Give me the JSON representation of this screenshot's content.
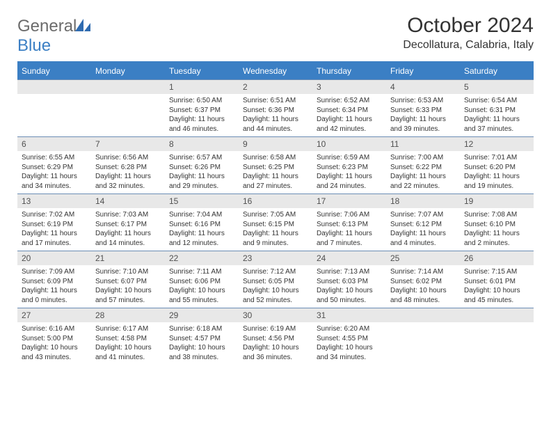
{
  "logo": {
    "word1": "General",
    "word2": "Blue"
  },
  "title": "October 2024",
  "location": "Decollatura, Calabria, Italy",
  "colors": {
    "header_bg": "#3b7fc4",
    "header_text": "#ffffff",
    "daynum_bg": "#e8e8e8",
    "daynum_text": "#505050",
    "body_text": "#333333",
    "rule": "#6b8db5",
    "logo_gray": "#6b6b6b",
    "logo_blue": "#3b7fc4"
  },
  "weekdays": [
    "Sunday",
    "Monday",
    "Tuesday",
    "Wednesday",
    "Thursday",
    "Friday",
    "Saturday"
  ],
  "grid": [
    [
      {
        "n": "",
        "lines": []
      },
      {
        "n": "",
        "lines": []
      },
      {
        "n": "1",
        "lines": [
          "Sunrise: 6:50 AM",
          "Sunset: 6:37 PM",
          "Daylight: 11 hours and 46 minutes."
        ]
      },
      {
        "n": "2",
        "lines": [
          "Sunrise: 6:51 AM",
          "Sunset: 6:36 PM",
          "Daylight: 11 hours and 44 minutes."
        ]
      },
      {
        "n": "3",
        "lines": [
          "Sunrise: 6:52 AM",
          "Sunset: 6:34 PM",
          "Daylight: 11 hours and 42 minutes."
        ]
      },
      {
        "n": "4",
        "lines": [
          "Sunrise: 6:53 AM",
          "Sunset: 6:33 PM",
          "Daylight: 11 hours and 39 minutes."
        ]
      },
      {
        "n": "5",
        "lines": [
          "Sunrise: 6:54 AM",
          "Sunset: 6:31 PM",
          "Daylight: 11 hours and 37 minutes."
        ]
      }
    ],
    [
      {
        "n": "6",
        "lines": [
          "Sunrise: 6:55 AM",
          "Sunset: 6:29 PM",
          "Daylight: 11 hours and 34 minutes."
        ]
      },
      {
        "n": "7",
        "lines": [
          "Sunrise: 6:56 AM",
          "Sunset: 6:28 PM",
          "Daylight: 11 hours and 32 minutes."
        ]
      },
      {
        "n": "8",
        "lines": [
          "Sunrise: 6:57 AM",
          "Sunset: 6:26 PM",
          "Daylight: 11 hours and 29 minutes."
        ]
      },
      {
        "n": "9",
        "lines": [
          "Sunrise: 6:58 AM",
          "Sunset: 6:25 PM",
          "Daylight: 11 hours and 27 minutes."
        ]
      },
      {
        "n": "10",
        "lines": [
          "Sunrise: 6:59 AM",
          "Sunset: 6:23 PM",
          "Daylight: 11 hours and 24 minutes."
        ]
      },
      {
        "n": "11",
        "lines": [
          "Sunrise: 7:00 AM",
          "Sunset: 6:22 PM",
          "Daylight: 11 hours and 22 minutes."
        ]
      },
      {
        "n": "12",
        "lines": [
          "Sunrise: 7:01 AM",
          "Sunset: 6:20 PM",
          "Daylight: 11 hours and 19 minutes."
        ]
      }
    ],
    [
      {
        "n": "13",
        "lines": [
          "Sunrise: 7:02 AM",
          "Sunset: 6:19 PM",
          "Daylight: 11 hours and 17 minutes."
        ]
      },
      {
        "n": "14",
        "lines": [
          "Sunrise: 7:03 AM",
          "Sunset: 6:17 PM",
          "Daylight: 11 hours and 14 minutes."
        ]
      },
      {
        "n": "15",
        "lines": [
          "Sunrise: 7:04 AM",
          "Sunset: 6:16 PM",
          "Daylight: 11 hours and 12 minutes."
        ]
      },
      {
        "n": "16",
        "lines": [
          "Sunrise: 7:05 AM",
          "Sunset: 6:15 PM",
          "Daylight: 11 hours and 9 minutes."
        ]
      },
      {
        "n": "17",
        "lines": [
          "Sunrise: 7:06 AM",
          "Sunset: 6:13 PM",
          "Daylight: 11 hours and 7 minutes."
        ]
      },
      {
        "n": "18",
        "lines": [
          "Sunrise: 7:07 AM",
          "Sunset: 6:12 PM",
          "Daylight: 11 hours and 4 minutes."
        ]
      },
      {
        "n": "19",
        "lines": [
          "Sunrise: 7:08 AM",
          "Sunset: 6:10 PM",
          "Daylight: 11 hours and 2 minutes."
        ]
      }
    ],
    [
      {
        "n": "20",
        "lines": [
          "Sunrise: 7:09 AM",
          "Sunset: 6:09 PM",
          "Daylight: 11 hours and 0 minutes."
        ]
      },
      {
        "n": "21",
        "lines": [
          "Sunrise: 7:10 AM",
          "Sunset: 6:07 PM",
          "Daylight: 10 hours and 57 minutes."
        ]
      },
      {
        "n": "22",
        "lines": [
          "Sunrise: 7:11 AM",
          "Sunset: 6:06 PM",
          "Daylight: 10 hours and 55 minutes."
        ]
      },
      {
        "n": "23",
        "lines": [
          "Sunrise: 7:12 AM",
          "Sunset: 6:05 PM",
          "Daylight: 10 hours and 52 minutes."
        ]
      },
      {
        "n": "24",
        "lines": [
          "Sunrise: 7:13 AM",
          "Sunset: 6:03 PM",
          "Daylight: 10 hours and 50 minutes."
        ]
      },
      {
        "n": "25",
        "lines": [
          "Sunrise: 7:14 AM",
          "Sunset: 6:02 PM",
          "Daylight: 10 hours and 48 minutes."
        ]
      },
      {
        "n": "26",
        "lines": [
          "Sunrise: 7:15 AM",
          "Sunset: 6:01 PM",
          "Daylight: 10 hours and 45 minutes."
        ]
      }
    ],
    [
      {
        "n": "27",
        "lines": [
          "Sunrise: 6:16 AM",
          "Sunset: 5:00 PM",
          "Daylight: 10 hours and 43 minutes."
        ]
      },
      {
        "n": "28",
        "lines": [
          "Sunrise: 6:17 AM",
          "Sunset: 4:58 PM",
          "Daylight: 10 hours and 41 minutes."
        ]
      },
      {
        "n": "29",
        "lines": [
          "Sunrise: 6:18 AM",
          "Sunset: 4:57 PM",
          "Daylight: 10 hours and 38 minutes."
        ]
      },
      {
        "n": "30",
        "lines": [
          "Sunrise: 6:19 AM",
          "Sunset: 4:56 PM",
          "Daylight: 10 hours and 36 minutes."
        ]
      },
      {
        "n": "31",
        "lines": [
          "Sunrise: 6:20 AM",
          "Sunset: 4:55 PM",
          "Daylight: 10 hours and 34 minutes."
        ]
      },
      {
        "n": "",
        "lines": []
      },
      {
        "n": "",
        "lines": []
      }
    ]
  ]
}
